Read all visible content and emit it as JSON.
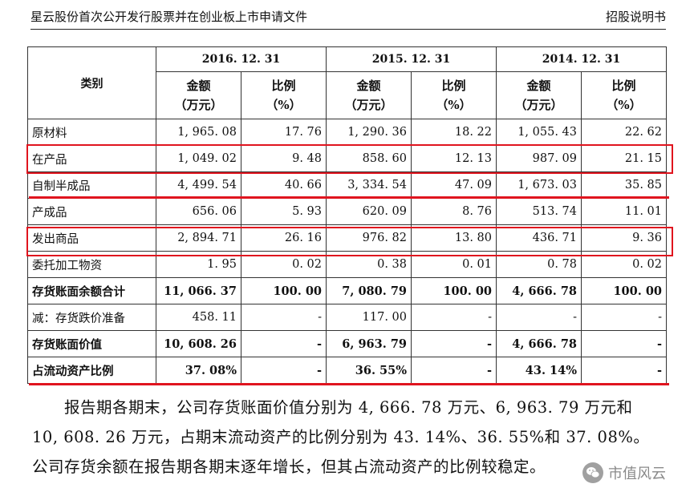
{
  "header": {
    "left": "星云股份首次公开发行股票并在创业板上市申请文件",
    "right": "招股说明书"
  },
  "table": {
    "category_header": "类别",
    "years": [
      "2016. 12. 31",
      "2015. 12. 31",
      "2014. 12. 31"
    ],
    "amount_label": "金额",
    "amount_unit": "（万元）",
    "ratio_label": "比例",
    "ratio_unit": "（%）",
    "rows": [
      {
        "name": "原材料",
        "v": [
          "1, 965. 08",
          "17. 76",
          "1, 290. 36",
          "18. 22",
          "1, 055. 43",
          "22. 62"
        ]
      },
      {
        "name": "在产品",
        "v": [
          "1, 049. 02",
          "9. 48",
          "858. 60",
          "12. 13",
          "987. 09",
          "21. 15"
        ]
      },
      {
        "name": "自制半成品",
        "v": [
          "4, 499. 54",
          "40. 66",
          "3, 334. 54",
          "47. 09",
          "1, 673. 03",
          "35. 85"
        ]
      },
      {
        "name": "产成品",
        "v": [
          "656. 06",
          "5. 93",
          "620. 09",
          "8. 76",
          "513. 74",
          "11. 01"
        ]
      },
      {
        "name": "发出商品",
        "v": [
          "2, 894. 71",
          "26. 16",
          "976. 82",
          "13. 80",
          "436. 71",
          "9. 36"
        ]
      },
      {
        "name": "委托加工物资",
        "v": [
          "1. 95",
          "0. 02",
          "0. 38",
          "0. 01",
          "0. 78",
          "0. 02"
        ]
      },
      {
        "name": "存货账面余额合计",
        "v": [
          "11, 066. 37",
          "100. 00",
          "7, 080. 79",
          "100. 00",
          "4, 666. 78",
          "100. 00"
        ]
      },
      {
        "name": "减：存货跌价准备",
        "v": [
          "458. 11",
          "-",
          "117. 00",
          "-",
          "-",
          "-"
        ]
      },
      {
        "name": "存货账面价值",
        "v": [
          "10, 608. 26",
          "-",
          "6, 963. 79",
          "-",
          "4, 666. 78",
          "-"
        ]
      },
      {
        "name": "占流动资产比例",
        "v": [
          "37. 08%",
          "-",
          "36. 55%",
          "-",
          "43. 14%",
          "-"
        ]
      }
    ]
  },
  "paragraph": {
    "line1": "报告期各期末，公司存货账面价值分别为 4, 666. 78 万元、6, 963. 79 万元和",
    "line2": "10, 608. 26 万元，占期末流动资产的比例分别为 43. 14%、36. 55%和 37. 08%。",
    "line3": "公司存货余额在报告期各期末逐年增长，但其占流动资产的比例较稳定。"
  },
  "watermark": {
    "text": "市值风云",
    "icon": "wechat-icon"
  },
  "colors": {
    "highlight": "#e0141e"
  }
}
